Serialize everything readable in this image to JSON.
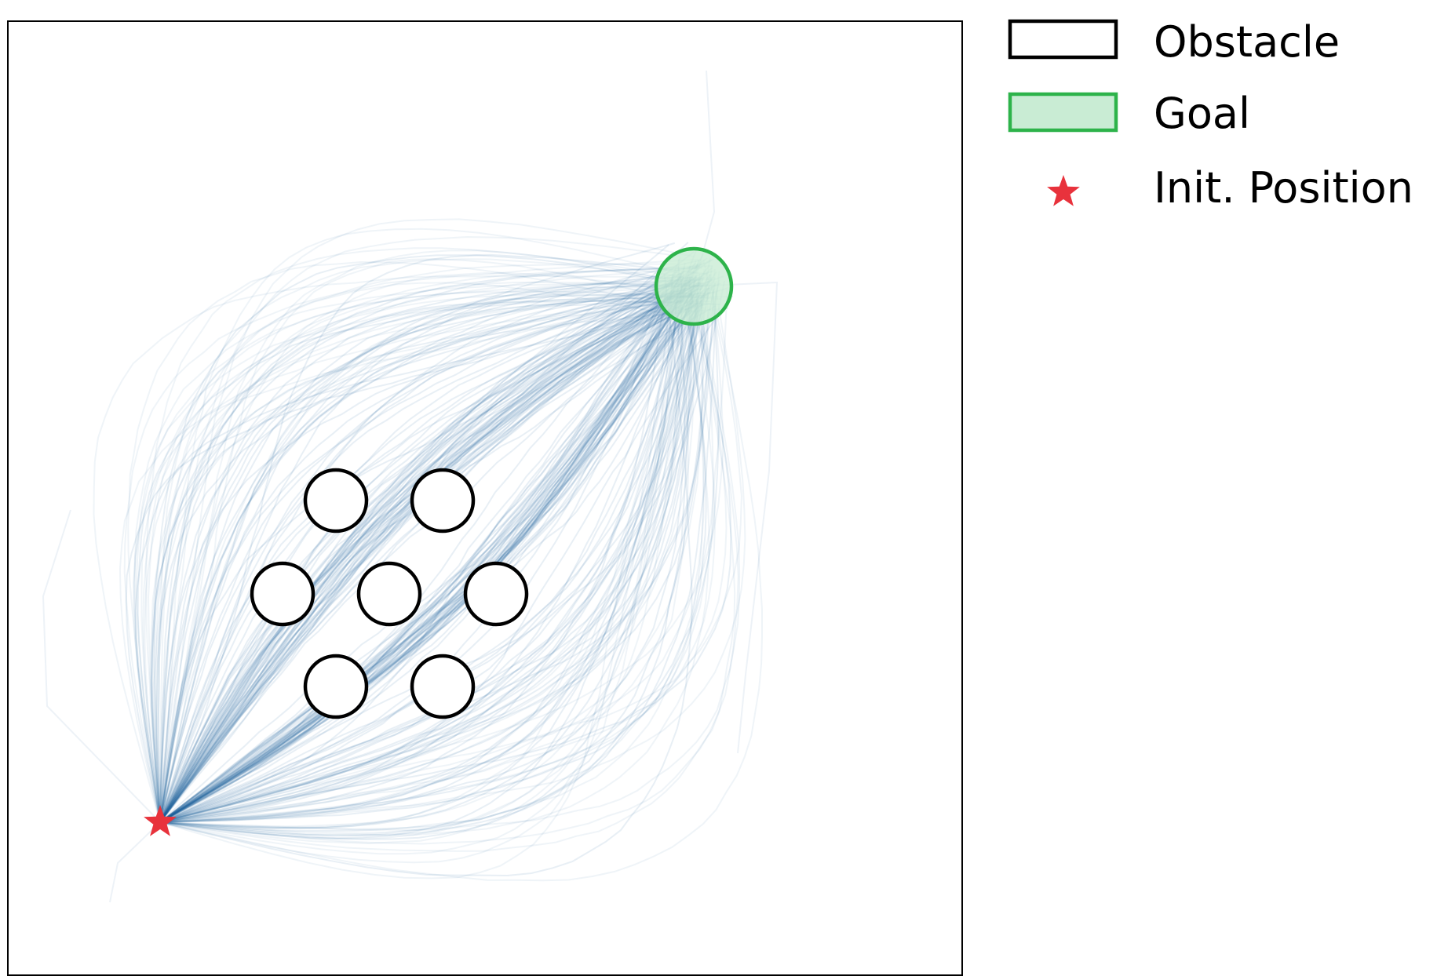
{
  "legend": {
    "obstacle_label": "Obstacle",
    "goal_label": "Goal",
    "init_label": "Init. Position"
  },
  "colors": {
    "trajectory": "#1f5f9e",
    "obstacle_edge": "#000000",
    "obstacle_fill": "#ffffff",
    "goal_edge": "#2db34a",
    "goal_fill": "#c9ecd4",
    "init_marker": "#e8323c",
    "frame": "#000000"
  },
  "scene": {
    "obstacle_count": 7,
    "trajectory_count": 260,
    "description_of_paths": "trajectories from start to goal passing through three corridors between obstacles and around both sides"
  }
}
